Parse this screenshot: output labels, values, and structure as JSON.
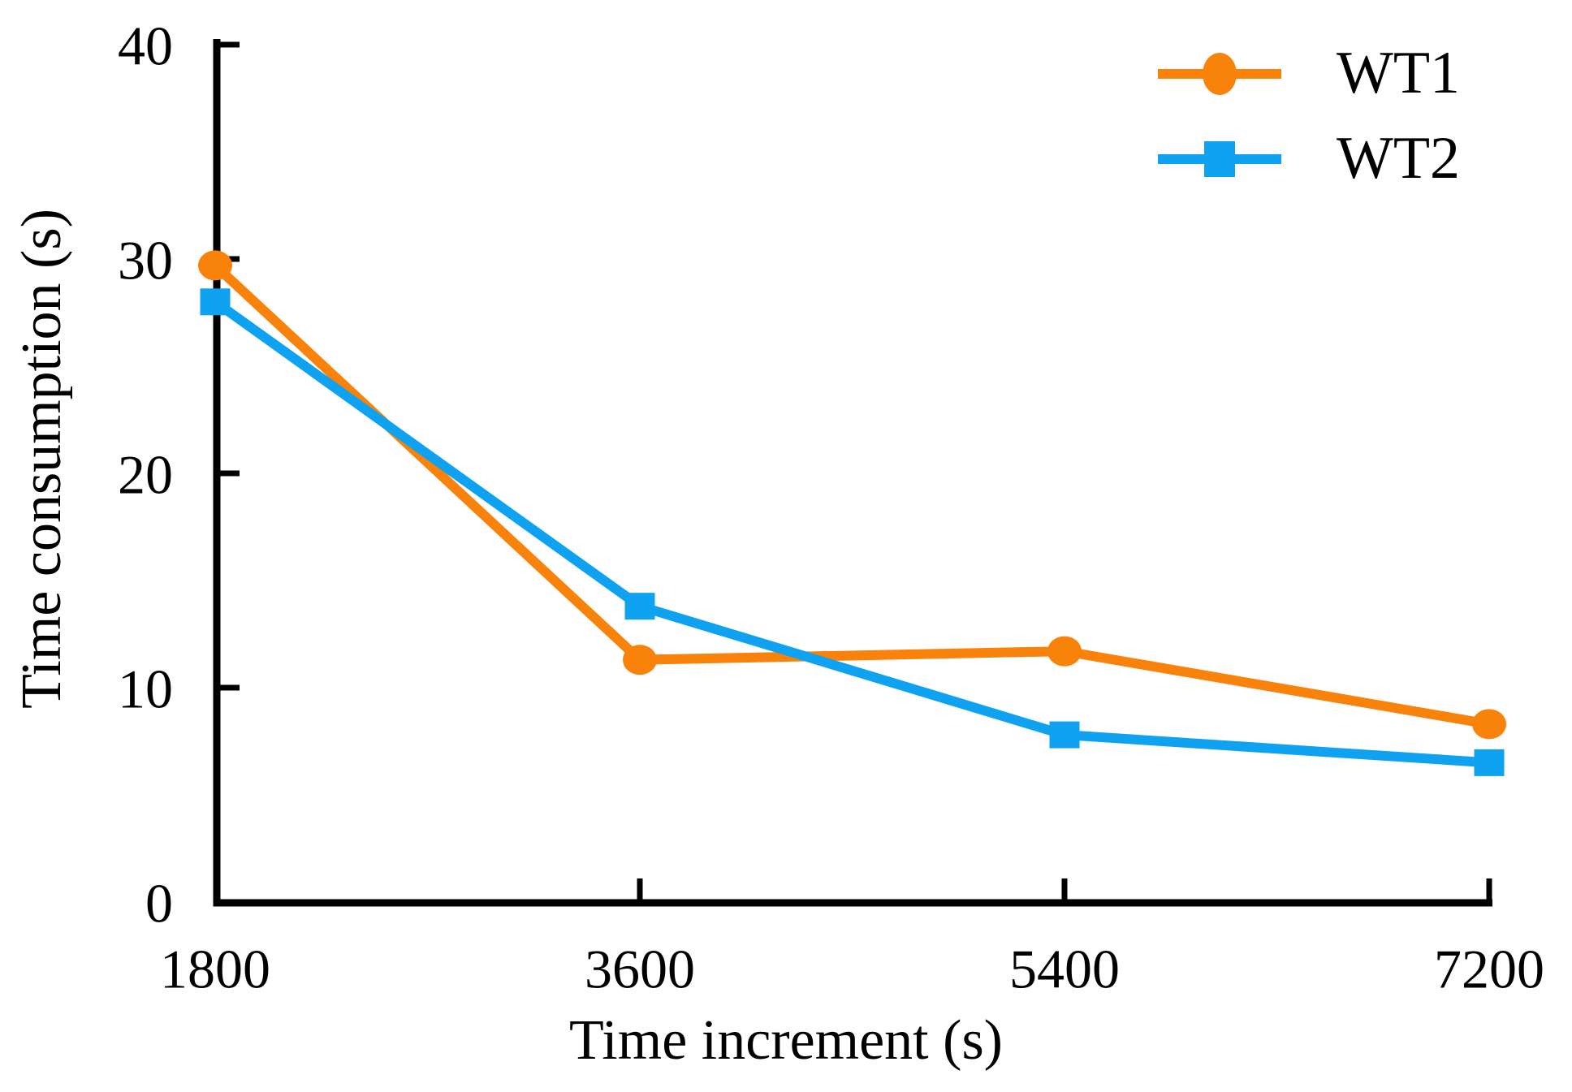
{
  "figure": {
    "background": "#FFFFFF",
    "axis_color": "#000000",
    "text_color": "#000000"
  },
  "legend": {
    "entries": [
      {
        "label": "WT1",
        "marker": "circle-marker-icon"
      },
      {
        "label": "WT2",
        "marker": "square-marker-icon"
      }
    ]
  },
  "chart_data": {
    "type": "line",
    "title": "",
    "xlabel": "Time increment (s)",
    "ylabel": "Time consumption (s)",
    "x": [
      1800,
      3600,
      5400,
      7200
    ],
    "xticks": [
      "1800",
      "3600",
      "5400",
      "7200"
    ],
    "yticks": [
      "0",
      "10",
      "20",
      "30",
      "40"
    ],
    "xlim": [
      1800,
      7200
    ],
    "ylim": [
      0,
      40
    ],
    "grid": false,
    "legend_position": "top-right-inside",
    "series": [
      {
        "name": "WT1",
        "color": "#F8820A",
        "marker": "circle",
        "values": [
          29.7,
          11.3,
          11.7,
          8.3
        ]
      },
      {
        "name": "WT2",
        "color": "#0EA2F0",
        "marker": "square",
        "values": [
          28.0,
          13.8,
          7.8,
          6.5
        ]
      }
    ]
  }
}
